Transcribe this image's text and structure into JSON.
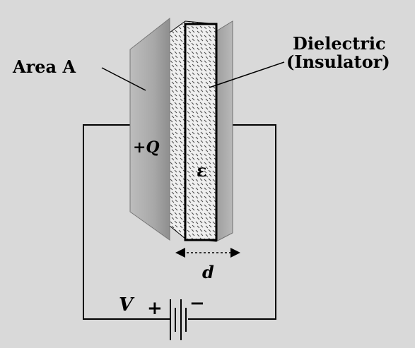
{
  "labels": {
    "area": "Area A",
    "dielectric_line1": "Dielectric",
    "dielectric_line2": "(Insulator)",
    "charge": "+Q",
    "permittivity": "ε",
    "separation": "d",
    "voltage": "V",
    "battery_plus": "+",
    "battery_minus": "−"
  },
  "colors": {
    "background": "#d9d9d9",
    "plate_gray": "#9a9a9a",
    "plate_highlight": "#c8c8c8",
    "dielectric_fill": "#eeeeee",
    "dielectric_hatch": "#555555",
    "wire": "#000000"
  }
}
